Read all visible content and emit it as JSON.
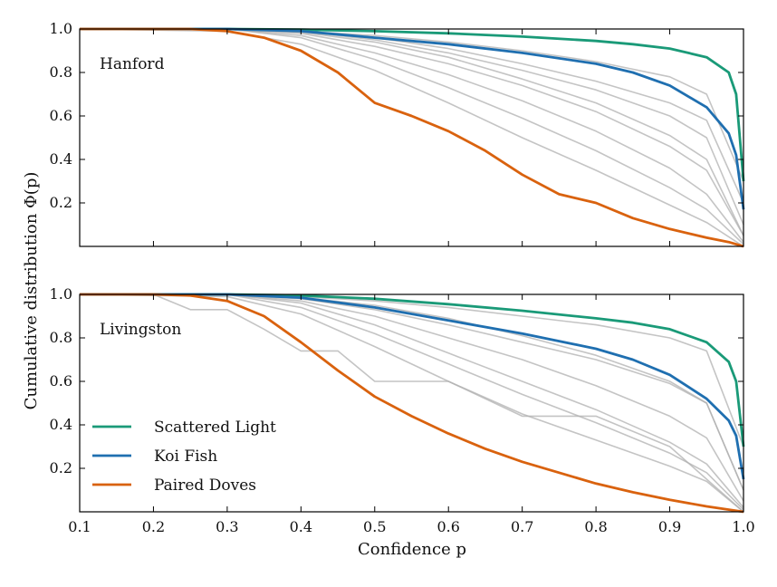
{
  "figure": {
    "xlabel": "Confidence p",
    "ylabel": "Cumulative distribution Φ(p)"
  },
  "chart_data": [
    {
      "type": "line",
      "panel_label": "Hanford",
      "xlabel": "Confidence p",
      "ylabel": "Cumulative distribution Φ(p)",
      "xlim": [
        0.1,
        1.0
      ],
      "ylim": [
        0.0,
        1.0
      ],
      "xticks": [
        0.1,
        0.2,
        0.3,
        0.4,
        0.5,
        0.6,
        0.7,
        0.8,
        0.9,
        1.0
      ],
      "yticks": [
        0.2,
        0.4,
        0.6,
        0.8,
        1.0
      ],
      "grid": false,
      "legend": null,
      "colors": {
        "Scattered Light": "#1a9a78",
        "Koi Fish": "#1f6fb0",
        "Paired Doves": "#d9620e",
        "other": "#b0b0b0"
      },
      "series": [
        {
          "name": "Scattered Light",
          "color": "#1a9a78",
          "x": [
            0.1,
            0.3,
            0.4,
            0.5,
            0.6,
            0.7,
            0.8,
            0.85,
            0.9,
            0.95,
            0.98,
            0.99,
            1.0
          ],
          "y": [
            1.0,
            1.0,
            0.997,
            0.99,
            0.98,
            0.965,
            0.945,
            0.93,
            0.91,
            0.87,
            0.8,
            0.7,
            0.3
          ]
        },
        {
          "name": "Koi Fish",
          "color": "#1f6fb0",
          "x": [
            0.1,
            0.3,
            0.4,
            0.5,
            0.6,
            0.7,
            0.8,
            0.85,
            0.9,
            0.95,
            0.98,
            0.99,
            1.0
          ],
          "y": [
            1.0,
            1.0,
            0.99,
            0.96,
            0.93,
            0.89,
            0.84,
            0.8,
            0.74,
            0.64,
            0.52,
            0.42,
            0.17
          ]
        },
        {
          "name": "Paired Doves",
          "color": "#d9620e",
          "x": [
            0.1,
            0.2,
            0.25,
            0.3,
            0.35,
            0.4,
            0.45,
            0.5,
            0.55,
            0.6,
            0.65,
            0.7,
            0.75,
            0.8,
            0.85,
            0.9,
            0.95,
            0.98,
            1.0
          ],
          "y": [
            1.0,
            1.0,
            1.0,
            0.99,
            0.96,
            0.9,
            0.8,
            0.66,
            0.6,
            0.53,
            0.44,
            0.33,
            0.24,
            0.2,
            0.13,
            0.08,
            0.04,
            0.02,
            0.0
          ]
        },
        {
          "name": "",
          "color": "#b0b0b0",
          "x": [
            0.1,
            0.3,
            0.4,
            0.5,
            0.6,
            0.7,
            0.8,
            0.9,
            0.95,
            1.0
          ],
          "y": [
            1.0,
            1.0,
            0.99,
            0.97,
            0.94,
            0.9,
            0.85,
            0.78,
            0.7,
            0.3
          ]
        },
        {
          "name": "",
          "color": "#b0b0b0",
          "x": [
            0.1,
            0.3,
            0.4,
            0.5,
            0.6,
            0.7,
            0.8,
            0.9,
            0.95,
            1.0
          ],
          "y": [
            1.0,
            1.0,
            0.99,
            0.95,
            0.89,
            0.81,
            0.72,
            0.6,
            0.5,
            0.1
          ]
        },
        {
          "name": "",
          "color": "#b0b0b0",
          "x": [
            0.1,
            0.3,
            0.4,
            0.5,
            0.6,
            0.7,
            0.8,
            0.9,
            0.95,
            1.0
          ],
          "y": [
            1.0,
            1.0,
            0.98,
            0.92,
            0.84,
            0.74,
            0.62,
            0.46,
            0.35,
            0.05
          ]
        },
        {
          "name": "",
          "color": "#b0b0b0",
          "x": [
            0.1,
            0.3,
            0.4,
            0.5,
            0.6,
            0.7,
            0.8,
            0.9,
            0.95,
            1.0
          ],
          "y": [
            1.0,
            1.0,
            0.97,
            0.89,
            0.79,
            0.67,
            0.53,
            0.36,
            0.24,
            0.02
          ]
        },
        {
          "name": "",
          "color": "#b0b0b0",
          "x": [
            0.1,
            0.3,
            0.4,
            0.5,
            0.6,
            0.7,
            0.8,
            0.9,
            0.95,
            1.0
          ],
          "y": [
            1.0,
            1.0,
            0.96,
            0.86,
            0.73,
            0.59,
            0.44,
            0.27,
            0.17,
            0.01
          ]
        },
        {
          "name": "",
          "color": "#b0b0b0",
          "x": [
            0.1,
            0.3,
            0.4,
            0.5,
            0.6,
            0.7,
            0.8,
            0.9,
            0.95,
            1.0
          ],
          "y": [
            1.0,
            0.99,
            0.93,
            0.81,
            0.66,
            0.5,
            0.35,
            0.19,
            0.11,
            0.0
          ]
        },
        {
          "name": "",
          "color": "#b0b0b0",
          "x": [
            0.1,
            0.3,
            0.4,
            0.5,
            0.6,
            0.7,
            0.8,
            0.9,
            0.95,
            1.0
          ],
          "y": [
            1.0,
            1.0,
            0.99,
            0.96,
            0.91,
            0.84,
            0.76,
            0.66,
            0.58,
            0.2
          ]
        },
        {
          "name": "",
          "color": "#b0b0b0",
          "x": [
            0.1,
            0.3,
            0.4,
            0.5,
            0.6,
            0.7,
            0.8,
            0.9,
            0.95,
            1.0
          ],
          "y": [
            1.0,
            1.0,
            0.985,
            0.94,
            0.87,
            0.77,
            0.66,
            0.51,
            0.4,
            0.05
          ]
        }
      ]
    },
    {
      "type": "line",
      "panel_label": "Livingston",
      "xlabel": "Confidence p",
      "ylabel": "Cumulative distribution Φ(p)",
      "xlim": [
        0.1,
        1.0
      ],
      "ylim": [
        0.0,
        1.0
      ],
      "xticks": [
        0.1,
        0.2,
        0.3,
        0.4,
        0.5,
        0.6,
        0.7,
        0.8,
        0.9,
        1.0
      ],
      "yticks": [
        0.2,
        0.4,
        0.6,
        0.8,
        1.0
      ],
      "grid": false,
      "legend": "lower-left",
      "legend_entries": [
        "Scattered Light",
        "Koi Fish",
        "Paired Doves"
      ],
      "colors": {
        "Scattered Light": "#1a9a78",
        "Koi Fish": "#1f6fb0",
        "Paired Doves": "#d9620e",
        "other": "#b0b0b0"
      },
      "series": [
        {
          "name": "Scattered Light",
          "color": "#1a9a78",
          "x": [
            0.1,
            0.3,
            0.4,
            0.5,
            0.6,
            0.7,
            0.8,
            0.85,
            0.9,
            0.95,
            0.98,
            0.99,
            1.0
          ],
          "y": [
            1.0,
            1.0,
            0.995,
            0.98,
            0.955,
            0.925,
            0.89,
            0.87,
            0.84,
            0.78,
            0.69,
            0.6,
            0.3
          ]
        },
        {
          "name": "Koi Fish",
          "color": "#1f6fb0",
          "x": [
            0.1,
            0.3,
            0.4,
            0.5,
            0.6,
            0.7,
            0.8,
            0.85,
            0.9,
            0.95,
            0.98,
            0.99,
            1.0
          ],
          "y": [
            1.0,
            1.0,
            0.985,
            0.94,
            0.88,
            0.82,
            0.75,
            0.7,
            0.63,
            0.52,
            0.42,
            0.35,
            0.15
          ]
        },
        {
          "name": "Paired Doves",
          "color": "#d9620e",
          "x": [
            0.1,
            0.2,
            0.25,
            0.3,
            0.35,
            0.4,
            0.45,
            0.5,
            0.55,
            0.6,
            0.65,
            0.7,
            0.75,
            0.8,
            0.85,
            0.9,
            0.95,
            1.0
          ],
          "y": [
            1.0,
            1.0,
            0.995,
            0.97,
            0.9,
            0.78,
            0.65,
            0.53,
            0.44,
            0.36,
            0.29,
            0.23,
            0.18,
            0.13,
            0.09,
            0.055,
            0.025,
            0.0
          ]
        },
        {
          "name": "",
          "color": "#b0b0b0",
          "x": [
            0.1,
            0.3,
            0.4,
            0.5,
            0.6,
            0.7,
            0.8,
            0.9,
            0.95,
            1.0
          ],
          "y": [
            1.0,
            1.0,
            0.99,
            0.97,
            0.94,
            0.9,
            0.86,
            0.8,
            0.74,
            0.3
          ]
        },
        {
          "name": "",
          "color": "#b0b0b0",
          "x": [
            0.1,
            0.3,
            0.4,
            0.5,
            0.6,
            0.7,
            0.8,
            0.9,
            0.95,
            1.0
          ],
          "y": [
            1.0,
            1.0,
            0.98,
            0.93,
            0.86,
            0.78,
            0.7,
            0.59,
            0.5,
            0.1
          ]
        },
        {
          "name": "",
          "color": "#b0b0b0",
          "x": [
            0.1,
            0.3,
            0.4,
            0.5,
            0.6,
            0.7,
            0.8,
            0.9,
            0.95,
            1.0
          ],
          "y": [
            1.0,
            1.0,
            0.97,
            0.9,
            0.8,
            0.7,
            0.58,
            0.44,
            0.34,
            0.05
          ]
        },
        {
          "name": "",
          "color": "#b0b0b0",
          "x": [
            0.1,
            0.3,
            0.4,
            0.5,
            0.6,
            0.7,
            0.8,
            0.9,
            0.95,
            1.0
          ],
          "y": [
            1.0,
            1.0,
            0.96,
            0.86,
            0.73,
            0.6,
            0.47,
            0.32,
            0.22,
            0.02
          ]
        },
        {
          "name": "",
          "color": "#b0b0b0",
          "x": [
            0.1,
            0.3,
            0.4,
            0.5,
            0.6,
            0.7,
            0.8,
            0.9,
            0.95,
            1.0
          ],
          "y": [
            1.0,
            1.0,
            0.94,
            0.82,
            0.68,
            0.54,
            0.41,
            0.27,
            0.18,
            0.01
          ]
        },
        {
          "name": "",
          "color": "#b0b0b0",
          "x": [
            0.1,
            0.3,
            0.4,
            0.5,
            0.6,
            0.7,
            0.8,
            0.9,
            0.95,
            1.0
          ],
          "y": [
            1.0,
            0.99,
            0.91,
            0.76,
            0.6,
            0.45,
            0.33,
            0.21,
            0.14,
            0.0
          ]
        },
        {
          "name": "",
          "color": "#b0b0b0",
          "x": [
            0.1,
            0.2,
            0.25,
            0.3,
            0.35,
            0.4,
            0.45,
            0.5,
            0.6,
            0.7,
            0.8,
            0.9,
            1.0
          ],
          "y": [
            1.0,
            1.0,
            0.93,
            0.93,
            0.84,
            0.74,
            0.74,
            0.6,
            0.6,
            0.44,
            0.44,
            0.3,
            0.0
          ]
        },
        {
          "name": "",
          "color": "#b0b0b0",
          "x": [
            0.1,
            0.3,
            0.4,
            0.5,
            0.6,
            0.7,
            0.8,
            0.9,
            0.95,
            1.0
          ],
          "y": [
            1.0,
            1.0,
            0.985,
            0.95,
            0.89,
            0.81,
            0.72,
            0.6,
            0.5,
            0.1
          ]
        }
      ]
    }
  ]
}
